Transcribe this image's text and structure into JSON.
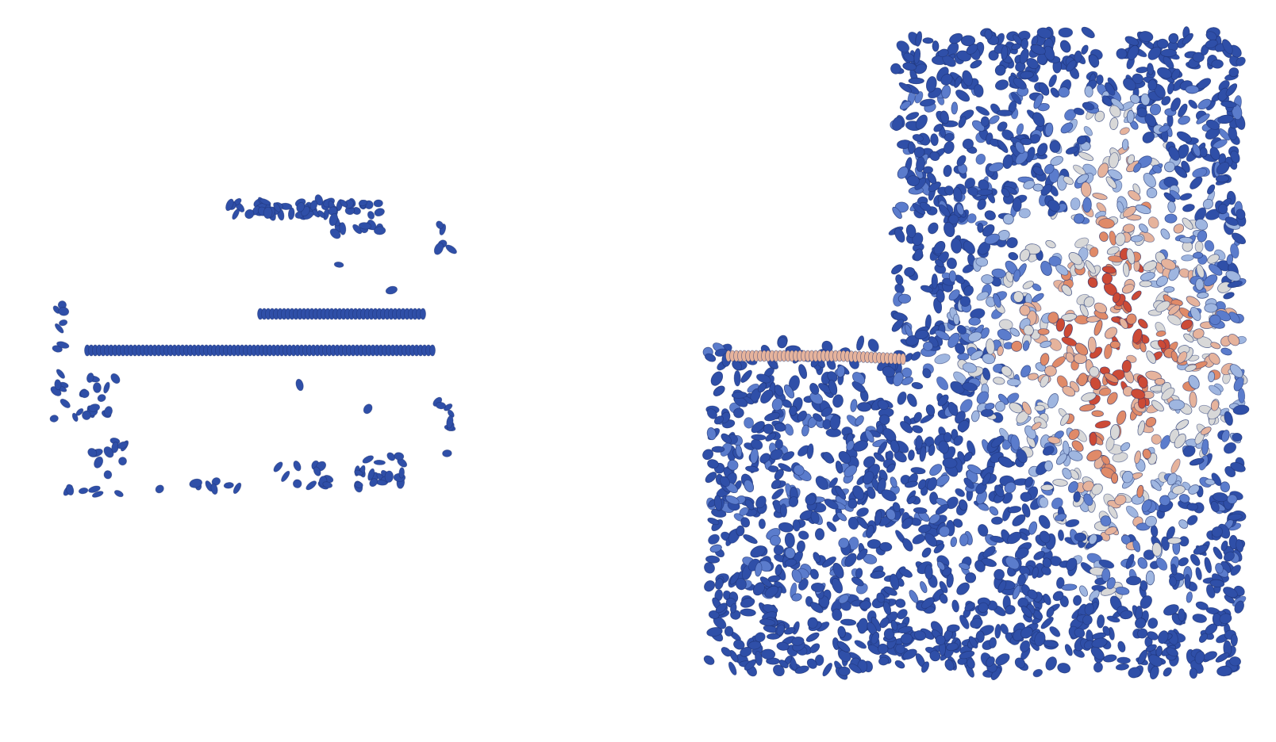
{
  "image": {
    "description_free": true
  },
  "panels": [
    {
      "id": "left",
      "state": "initial",
      "cell_color": "#2f4fa8"
    },
    {
      "id": "right",
      "state": "developed",
      "palette": [
        "#2f4fa8",
        "#5b7ccc",
        "#9fb6e0",
        "#d8d8d8",
        "#e6b39c",
        "#e08a68",
        "#cc4a36"
      ]
    }
  ],
  "colors": {
    "background": "#ffffff",
    "cell_outline": "#1c2f70"
  }
}
